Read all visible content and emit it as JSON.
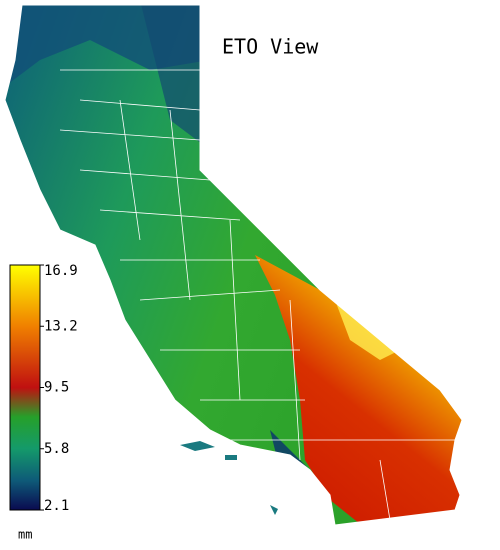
{
  "title": "ETO View",
  "legend": {
    "ticks": [
      16.9,
      13.2,
      9.5,
      5.8,
      2.1
    ],
    "unit": "mm"
  }
}
